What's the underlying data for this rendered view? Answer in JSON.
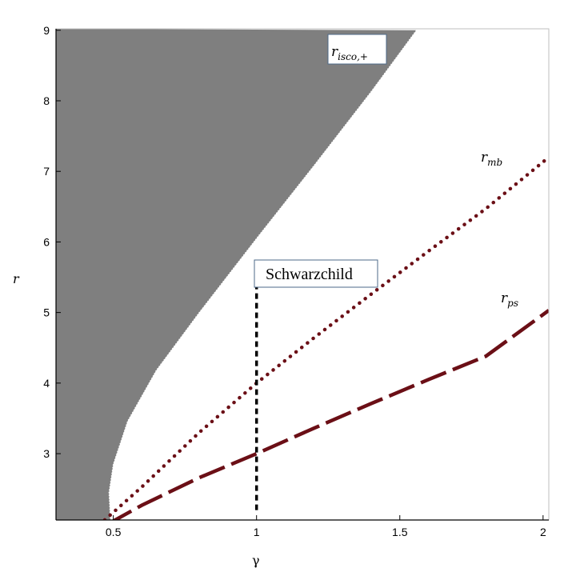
{
  "chart_data": {
    "type": "line",
    "title": "",
    "xlabel": "γ",
    "ylabel": "r",
    "xlim": [
      0.3,
      2.02
    ],
    "ylim": [
      2.06,
      9.02
    ],
    "xticks": [
      0.5,
      1,
      1.5,
      2
    ],
    "xtick_labels": [
      "0.5",
      "1",
      "1.5",
      "2"
    ],
    "yticks": [
      3,
      4,
      5,
      6,
      7,
      8,
      9
    ],
    "ytick_labels": [
      "3",
      "4",
      "5",
      "6",
      "7",
      "8",
      "9"
    ],
    "grid": false,
    "colors": {
      "shaded": "#7f7f7f",
      "curve": "#6b0f16",
      "marker": "#000000"
    },
    "shaded_region": {
      "name": "r_isco,+",
      "boundary": {
        "x": [
          1.558,
          1.4,
          1.2,
          1.0,
          0.8,
          0.65,
          0.55,
          0.5,
          0.485,
          0.49
        ],
        "y": [
          9.0,
          8.13,
          7.08,
          6.05,
          5.0,
          4.18,
          3.46,
          2.85,
          2.45,
          2.06
        ]
      }
    },
    "series": [
      {
        "name": "r_mb",
        "style": "dotted",
        "x": [
          0.47,
          0.6,
          0.8,
          1.0,
          1.2,
          1.4,
          1.6,
          1.8,
          2.02
        ],
        "y": [
          2.06,
          2.53,
          3.3,
          4.0,
          4.64,
          5.26,
          5.87,
          6.47,
          7.2
        ]
      },
      {
        "name": "r_ps",
        "style": "dashed",
        "x": [
          0.48,
          0.6,
          0.8,
          1.0,
          1.2,
          1.4,
          1.6,
          1.8,
          2.02
        ],
        "y": [
          2.0,
          2.27,
          2.66,
          3.0,
          3.36,
          3.71,
          4.05,
          4.38,
          5.03
        ]
      }
    ],
    "marker_line": {
      "x": 1.0,
      "y": [
        2.2,
        5.38
      ],
      "style": "dashed",
      "label": "Schwarzchild"
    },
    "annotations": {
      "isco": {
        "main": "r",
        "sub": "isco,+"
      },
      "mb": {
        "main": "r",
        "sub": "mb"
      },
      "ps": {
        "main": "r",
        "sub": "ps"
      }
    }
  }
}
